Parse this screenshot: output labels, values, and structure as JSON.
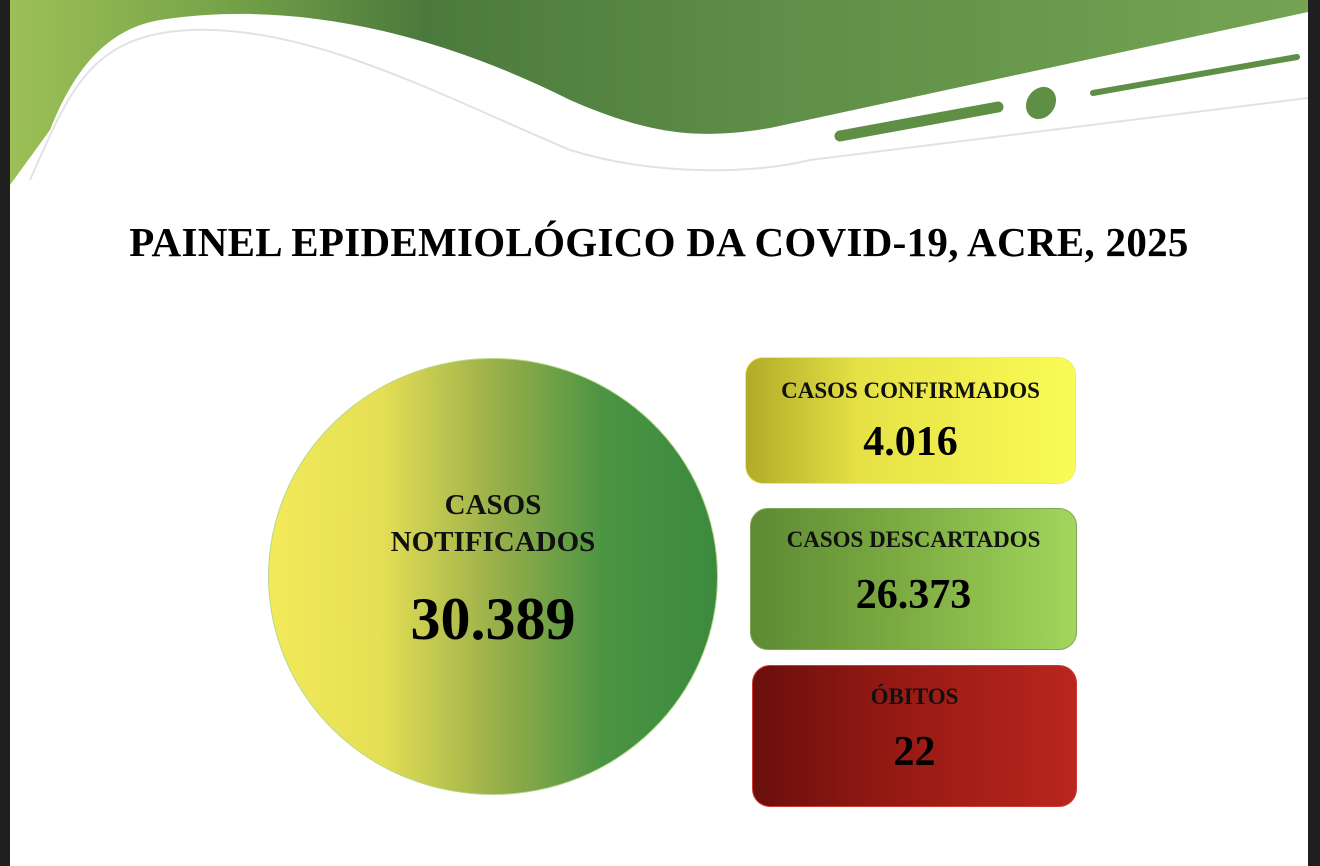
{
  "title": "PAINEL EPIDEMIOLÓGICO DA COVID-19, ACRE, 2025",
  "colors": {
    "header_green": "#5e8f45",
    "confirmed": "#f2ee4c",
    "discarded": "#7fae44",
    "deaths": "#a21d16"
  },
  "notified": {
    "label": "CASOS NOTIFICADOS",
    "value": "30.389"
  },
  "confirmed": {
    "label": "CASOS CONFIRMADOS",
    "value": "4.016"
  },
  "discarded": {
    "label": "CASOS DESCARTADOS",
    "value": "26.373"
  },
  "deaths": {
    "label": "ÓBITOS",
    "value": "22"
  }
}
